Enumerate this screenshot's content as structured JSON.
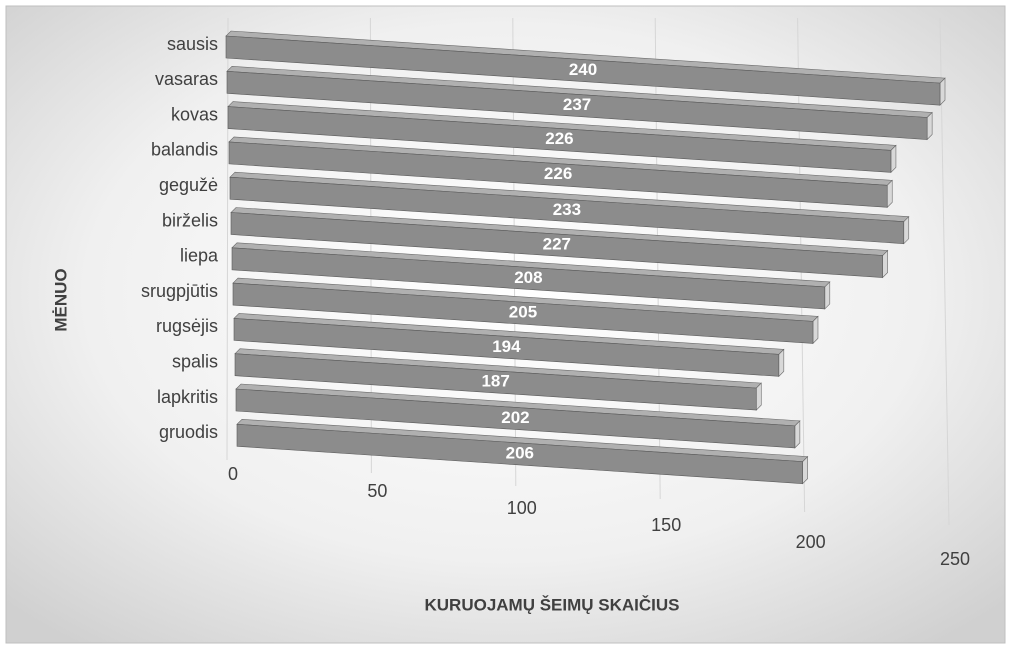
{
  "chart_data": {
    "type": "bar3d",
    "orientation": "horizontal",
    "categories": [
      "sausis",
      "vasaras",
      "kovas",
      "balandis",
      "gegužė",
      "birželis",
      "liepa",
      "srugpjūtis",
      "rugsėjis",
      "spalis",
      "lapkritis",
      "gruodis"
    ],
    "values": [
      240,
      237,
      226,
      226,
      233,
      227,
      208,
      205,
      194,
      187,
      202,
      206
    ],
    "color": "#8c8c8c",
    "xlim": [
      0,
      250
    ],
    "xticks": [
      0,
      50,
      100,
      150,
      200,
      250
    ],
    "xlabel": "KURUOJAMŲ ŠEIMŲ SKAIČIUS",
    "ylabel": "MĖNUO",
    "grid": true
  }
}
